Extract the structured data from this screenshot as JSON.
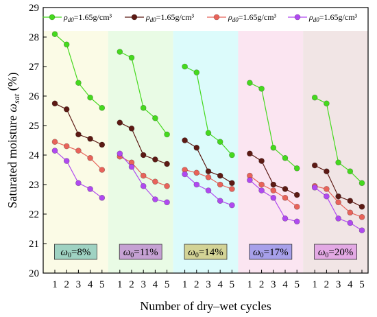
{
  "chart_data": {
    "type": "line",
    "xlabel": "Number of dry–wet cycles",
    "ylabel": "Saturated moisture ωsat (%)",
    "ylabel_main": "Saturated moisture ",
    "ylabel_symbol": "ω",
    "ylabel_sub": "sat",
    "ylabel_unit": " (%)",
    "ylim": [
      20,
      29
    ],
    "yticks": [
      "20",
      "21",
      "22",
      "23",
      "24",
      "25",
      "26",
      "27",
      "28",
      "29"
    ],
    "x_ticks": [
      "1",
      "2",
      "3",
      "4",
      "5"
    ],
    "grid": false,
    "legend": {
      "placement": "top",
      "entries": [
        {
          "symbol": "ρ",
          "sub": "d0",
          "text": "=1.65g/cm³",
          "color": "#45d91e"
        },
        {
          "symbol": "ρ",
          "sub": "d0",
          "text": "=1.65g/cm³",
          "color": "#5c1a14"
        },
        {
          "symbol": "ρ",
          "sub": "d0",
          "text": "=1.65g/cm³",
          "color": "#e8635a"
        },
        {
          "symbol": "ρ",
          "sub": "d0",
          "text": "=1.65g/cm³",
          "color": "#b049f0"
        }
      ]
    },
    "panels": [
      {
        "label_symbol": "ω",
        "label_sub": "0",
        "label_text": "=8%",
        "bg": "#fbfbe6",
        "label_bg": "#9fd2c2",
        "series": [
          {
            "color": "#45d91e",
            "values": [
              28.1,
              27.75,
              26.45,
              25.95,
              25.6
            ]
          },
          {
            "color": "#5c1a14",
            "values": [
              25.75,
              25.55,
              24.7,
              24.55,
              24.35
            ]
          },
          {
            "color": "#e8635a",
            "values": [
              24.45,
              24.3,
              24.15,
              23.9,
              23.5
            ]
          },
          {
            "color": "#b049f0",
            "values": [
              24.15,
              23.8,
              23.05,
              22.85,
              22.55
            ]
          }
        ]
      },
      {
        "label_symbol": "ω",
        "label_sub": "0",
        "label_text": "=11%",
        "bg": "#e9fbe5",
        "label_bg": "#c5a1d3",
        "series": [
          {
            "color": "#45d91e",
            "values": [
              27.5,
              27.3,
              25.6,
              25.25,
              24.7
            ]
          },
          {
            "color": "#5c1a14",
            "values": [
              25.1,
              24.9,
              24.0,
              23.85,
              23.7
            ]
          },
          {
            "color": "#e8635a",
            "values": [
              23.95,
              23.75,
              23.3,
              23.1,
              22.95
            ]
          },
          {
            "color": "#b049f0",
            "values": [
              24.05,
              23.6,
              22.95,
              22.5,
              22.4
            ]
          }
        ]
      },
      {
        "label_symbol": "ω",
        "label_sub": "0",
        "label_text": "=14%",
        "bg": "#dcfbfb",
        "label_bg": "#d3d396",
        "series": [
          {
            "color": "#45d91e",
            "values": [
              27.0,
              26.8,
              24.75,
              24.45,
              24.0
            ]
          },
          {
            "color": "#5c1a14",
            "values": [
              24.5,
              24.25,
              23.45,
              23.3,
              23.05
            ]
          },
          {
            "color": "#e8635a",
            "values": [
              23.5,
              23.4,
              23.25,
              23.0,
              22.85
            ]
          },
          {
            "color": "#b049f0",
            "values": [
              23.35,
              23.0,
              22.8,
              22.45,
              22.3
            ]
          }
        ]
      },
      {
        "label_symbol": "ω",
        "label_sub": "0",
        "label_text": "=17%",
        "bg": "#fbe5f1",
        "label_bg": "#a7a0ea",
        "series": [
          {
            "color": "#45d91e",
            "values": [
              26.45,
              26.25,
              24.25,
              23.9,
              23.55
            ]
          },
          {
            "color": "#5c1a14",
            "values": [
              24.05,
              23.8,
              23.0,
              22.85,
              22.65
            ]
          },
          {
            "color": "#e8635a",
            "values": [
              23.3,
              23.0,
              22.8,
              22.55,
              22.25
            ]
          },
          {
            "color": "#b049f0",
            "values": [
              23.15,
              22.8,
              22.55,
              21.85,
              21.75
            ]
          }
        ]
      },
      {
        "label_symbol": "ω",
        "label_sub": "0",
        "label_text": "=20%",
        "bg": "#f1e5e5",
        "label_bg": "#e3a9e4",
        "series": [
          {
            "color": "#45d91e",
            "values": [
              25.95,
              25.75,
              23.75,
              23.45,
              23.05
            ]
          },
          {
            "color": "#5c1a14",
            "values": [
              23.65,
              23.45,
              22.6,
              22.45,
              22.25
            ]
          },
          {
            "color": "#e8635a",
            "values": [
              22.95,
              22.85,
              22.4,
              22.05,
              21.9
            ]
          },
          {
            "color": "#b049f0",
            "values": [
              22.9,
              22.6,
              21.85,
              21.7,
              21.45
            ]
          }
        ]
      }
    ]
  }
}
